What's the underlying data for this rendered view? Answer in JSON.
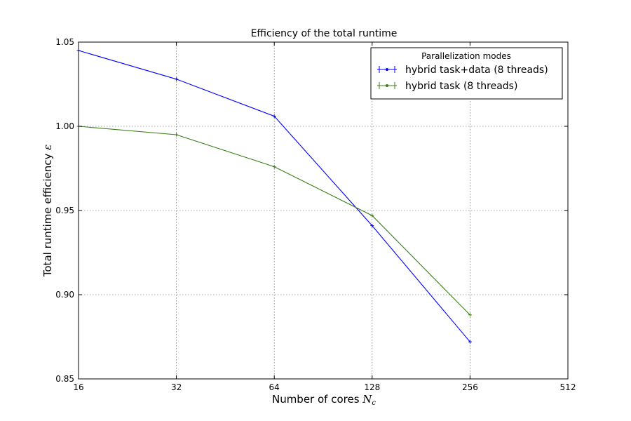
{
  "chart_data": {
    "type": "line",
    "title": "Efficiency of the total runtime",
    "xlabel": "Number of cores ",
    "xlabel_math": "N",
    "xlabel_sub": "c",
    "ylabel": "Total runtime efficiency ",
    "ylabel_math": "ε",
    "x_scale": "log2",
    "xlim": [
      16,
      512
    ],
    "ylim": [
      0.85,
      1.05
    ],
    "x_ticks": [
      16,
      32,
      64,
      128,
      256,
      512
    ],
    "x_tick_labels": [
      "16",
      "32",
      "64",
      "128",
      "256",
      "512"
    ],
    "y_ticks": [
      0.85,
      0.9,
      0.95,
      1.0,
      1.05
    ],
    "y_tick_labels": [
      "0.85",
      "0.90",
      "0.95",
      "1.00",
      "1.05"
    ],
    "grid": true,
    "legend": {
      "title": "Parallelization modes",
      "position": "top-right"
    },
    "series": [
      {
        "name": "hybrid task+data (8 threads)",
        "color": "#0000ff",
        "x": [
          16,
          32,
          64,
          128,
          256
        ],
        "y": [
          1.045,
          1.028,
          1.006,
          0.941,
          0.872
        ]
      },
      {
        "name": "hybrid task (8 threads)",
        "color": "#3a7d1a",
        "x": [
          16,
          32,
          64,
          128,
          256
        ],
        "y": [
          1.0,
          0.995,
          0.976,
          0.947,
          0.888
        ]
      }
    ]
  }
}
